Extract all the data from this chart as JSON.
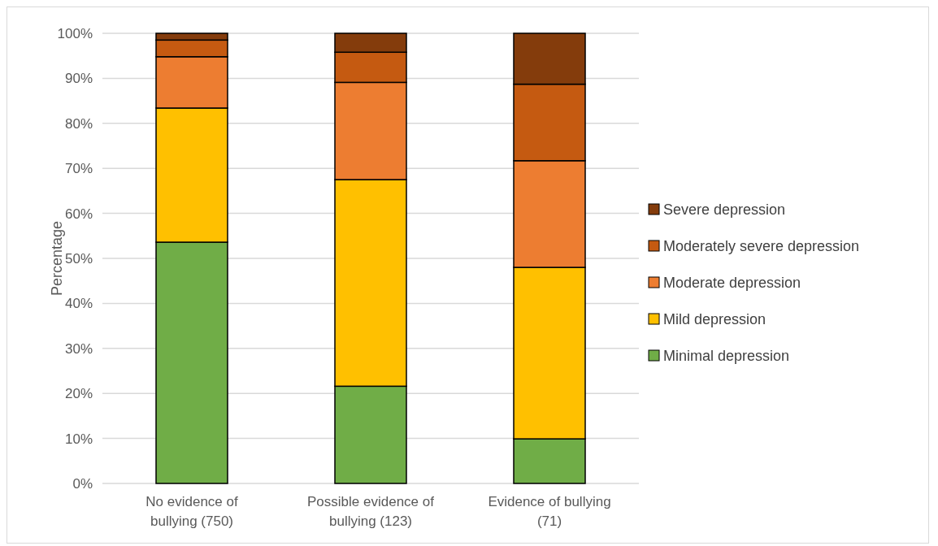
{
  "chart_data": {
    "type": "bar",
    "stacked": true,
    "ylabel": "Percentage",
    "categories": [
      "No evidence of bullying (750)",
      "Possible evidence of bullying (123)",
      "Evidence of bullying (71)"
    ],
    "series": [
      {
        "name": "Minimal depression",
        "color": "#70ad47",
        "values": [
          53.6,
          21.6,
          9.9
        ]
      },
      {
        "name": "Mild depression",
        "color": "#ffc000",
        "values": [
          29.8,
          45.9,
          38.1
        ]
      },
      {
        "name": "Moderate depression",
        "color": "#ed7d31",
        "values": [
          11.4,
          21.6,
          23.7
        ]
      },
      {
        "name": "Moderately severe depression",
        "color": "#c55a11",
        "values": [
          3.7,
          6.7,
          17.0
        ]
      },
      {
        "name": "Severe depression",
        "color": "#843c0c",
        "values": [
          1.5,
          4.2,
          11.3
        ]
      }
    ],
    "ylim": [
      0,
      100
    ],
    "yticks": [
      {
        "value": 0,
        "label": "0%"
      },
      {
        "value": 10,
        "label": "10%"
      },
      {
        "value": 20,
        "label": "20%"
      },
      {
        "value": 30,
        "label": "30%"
      },
      {
        "value": 40,
        "label": "40%"
      },
      {
        "value": 50,
        "label": "50%"
      },
      {
        "value": 60,
        "label": "60%"
      },
      {
        "value": 70,
        "label": "70%"
      },
      {
        "value": 80,
        "label": "80%"
      },
      {
        "value": 90,
        "label": "90%"
      },
      {
        "value": 100,
        "label": "100%"
      }
    ],
    "grid": "y",
    "legend": "right"
  }
}
